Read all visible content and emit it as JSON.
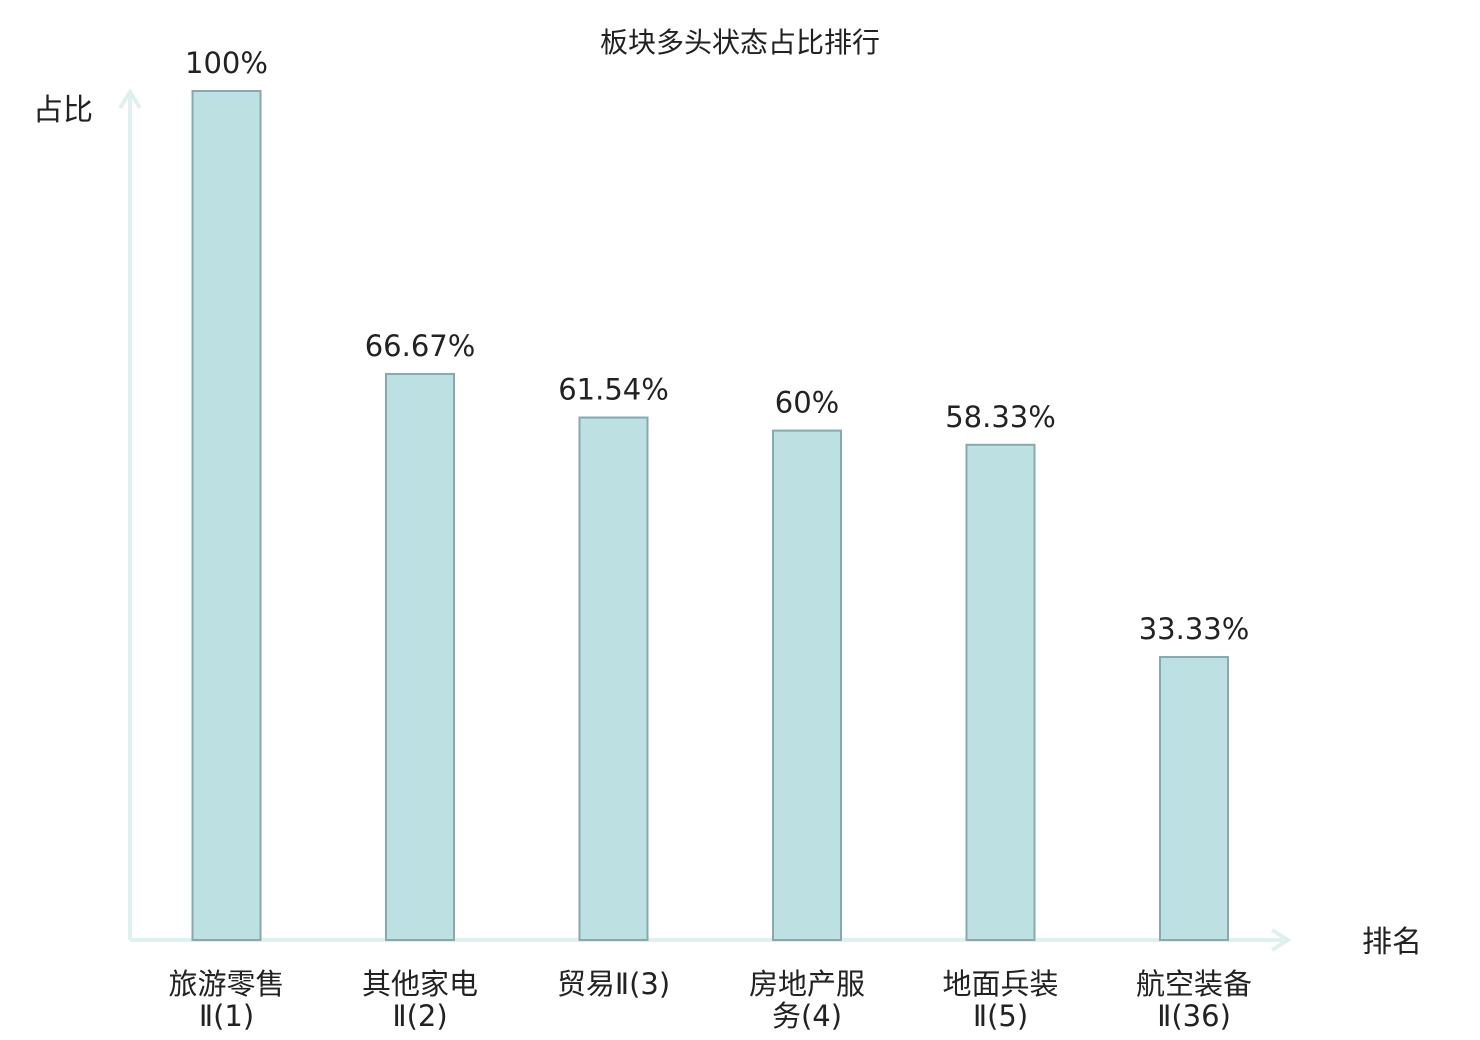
{
  "chart_data": {
    "type": "bar",
    "title": "板块多头状态占比排行",
    "ylabel": "占比",
    "xlabel": "排名",
    "ylim": [
      0,
      100
    ],
    "categories": [
      [
        "旅游零售",
        "Ⅱ(1)"
      ],
      [
        "其他家电",
        "Ⅱ(2)"
      ],
      [
        "贸易Ⅱ(3)"
      ],
      [
        "房地产服",
        "务(4)"
      ],
      [
        "地面兵装",
        "Ⅱ(5)"
      ],
      [
        "航空装备",
        "Ⅱ(36)"
      ]
    ],
    "values": [
      100,
      66.67,
      61.54,
      60,
      58.33,
      33.33
    ],
    "value_labels": [
      "100%",
      "66.67%",
      "61.54%",
      "60%",
      "58.33%",
      "33.33%"
    ],
    "highlight_index": 5,
    "grid": false,
    "colors": {
      "bar_fill": "#bde0e3",
      "bar_stroke": "#8aa8ab",
      "axis": "#dff1ee",
      "text": "#222222",
      "highlight_text": "#e8191a"
    }
  }
}
